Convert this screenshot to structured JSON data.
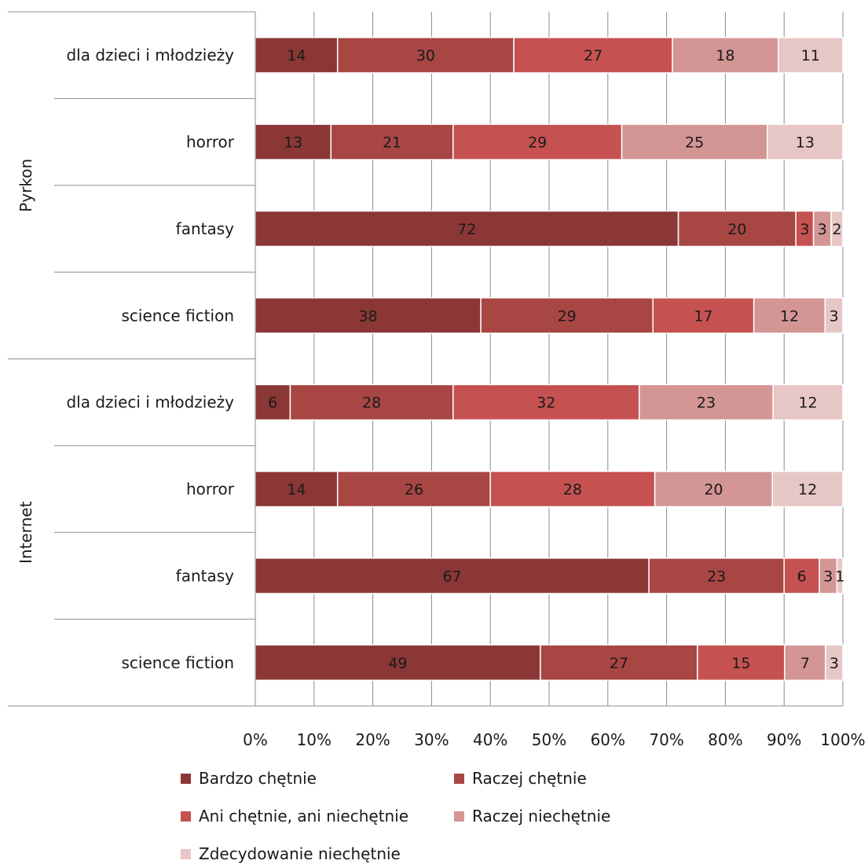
{
  "chart_data": {
    "type": "bar",
    "orientation": "horizontal",
    "stacked": "percent",
    "groups": [
      {
        "name": "Pyrkon",
        "categories": [
          "dla dzieci i młodzieży",
          "horror",
          "fantasy",
          "science fiction"
        ]
      },
      {
        "name": "Internet",
        "categories": [
          "dla dzieci i młodzieży",
          "horror",
          "fantasy",
          "science fiction"
        ]
      }
    ],
    "series": [
      {
        "name": "Bardzo chętnie",
        "color": "#8b3736",
        "values": [
          14,
          13,
          72,
          38,
          6,
          14,
          67,
          49
        ]
      },
      {
        "name": "Raczej chętnie",
        "color": "#a84644",
        "values": [
          30,
          21,
          20,
          29,
          28,
          26,
          23,
          27
        ]
      },
      {
        "name": "Ani chętnie, ani niechętnie",
        "color": "#c55250",
        "values": [
          27,
          29,
          3,
          17,
          32,
          28,
          6,
          15
        ]
      },
      {
        "name": "Raczej niechętnie",
        "color": "#d49595",
        "values": [
          18,
          25,
          3,
          12,
          23,
          20,
          3,
          7
        ]
      },
      {
        "name": "Zdecydowanie niechętnie",
        "color": "#e7c7c6",
        "values": [
          11,
          13,
          2,
          3,
          12,
          12,
          1,
          3
        ]
      }
    ],
    "xticks": [
      "0%",
      "10%",
      "20%",
      "30%",
      "40%",
      "50%",
      "60%",
      "70%",
      "80%",
      "90%",
      "100%"
    ],
    "xlim": [
      0,
      100
    ],
    "grid": true,
    "legend": "bottom"
  }
}
